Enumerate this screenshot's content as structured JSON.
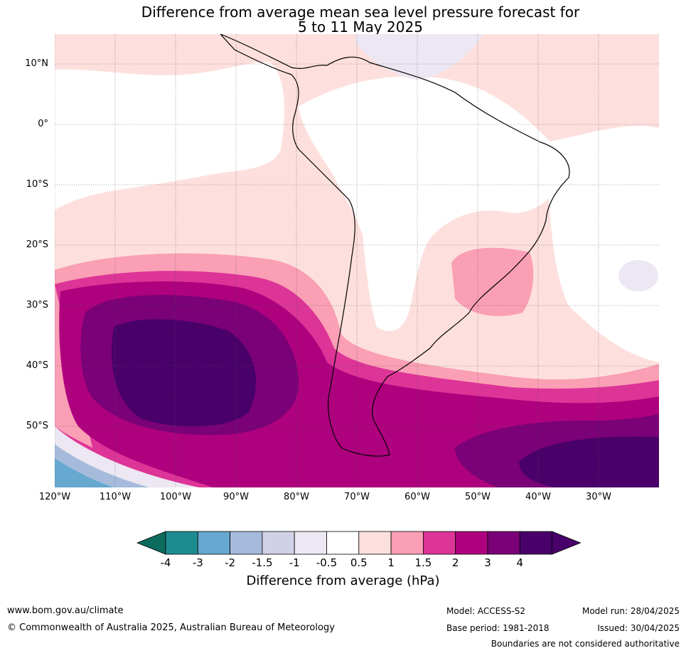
{
  "title": {
    "line1": "Difference from average mean sea level pressure forecast for",
    "line2": "5 to 11 May 2025"
  },
  "map": {
    "lat_labels": [
      "10°N",
      "0°",
      "10°S",
      "20°S",
      "30°S",
      "40°S",
      "50°S"
    ],
    "lon_labels": [
      "120°W",
      "110°W",
      "100°W",
      "90°W",
      "80°W",
      "70°W",
      "60°W",
      "50°W",
      "40°W",
      "30°W"
    ],
    "lat_extent": [
      -60,
      15
    ],
    "lon_extent": [
      -120,
      -20
    ]
  },
  "colorbar": {
    "ticks": [
      "-4",
      "-3",
      "-2",
      "-1.5",
      "-1",
      "-0.5",
      "0.5",
      "1",
      "1.5",
      "2",
      "3",
      "4"
    ],
    "colors": [
      "#1d8c91",
      "#66a8cf",
      "#a6bbdb",
      "#d0d1e6",
      "#ece7f2",
      "#ffffff",
      "#fde0dd",
      "#fa9fb5",
      "#dd3497",
      "#ae017e",
      "#7a0177",
      "#49006a"
    ],
    "under_color": "#0b6b5c",
    "over_color": "#49006a",
    "label": "Difference from average (hPa)"
  },
  "footer": {
    "website": "www.bom.gov.au/climate",
    "copyright": "© Commonwealth of Australia 2025, Australian Bureau of Meteorology",
    "model": "Model: ACCESS-S2",
    "base_period": "Base period: 1981-2018",
    "model_run": "Model run: 28/04/2025",
    "issued": "Issued: 30/04/2025",
    "disclaimer": "Boundaries are not considered authoritative"
  }
}
